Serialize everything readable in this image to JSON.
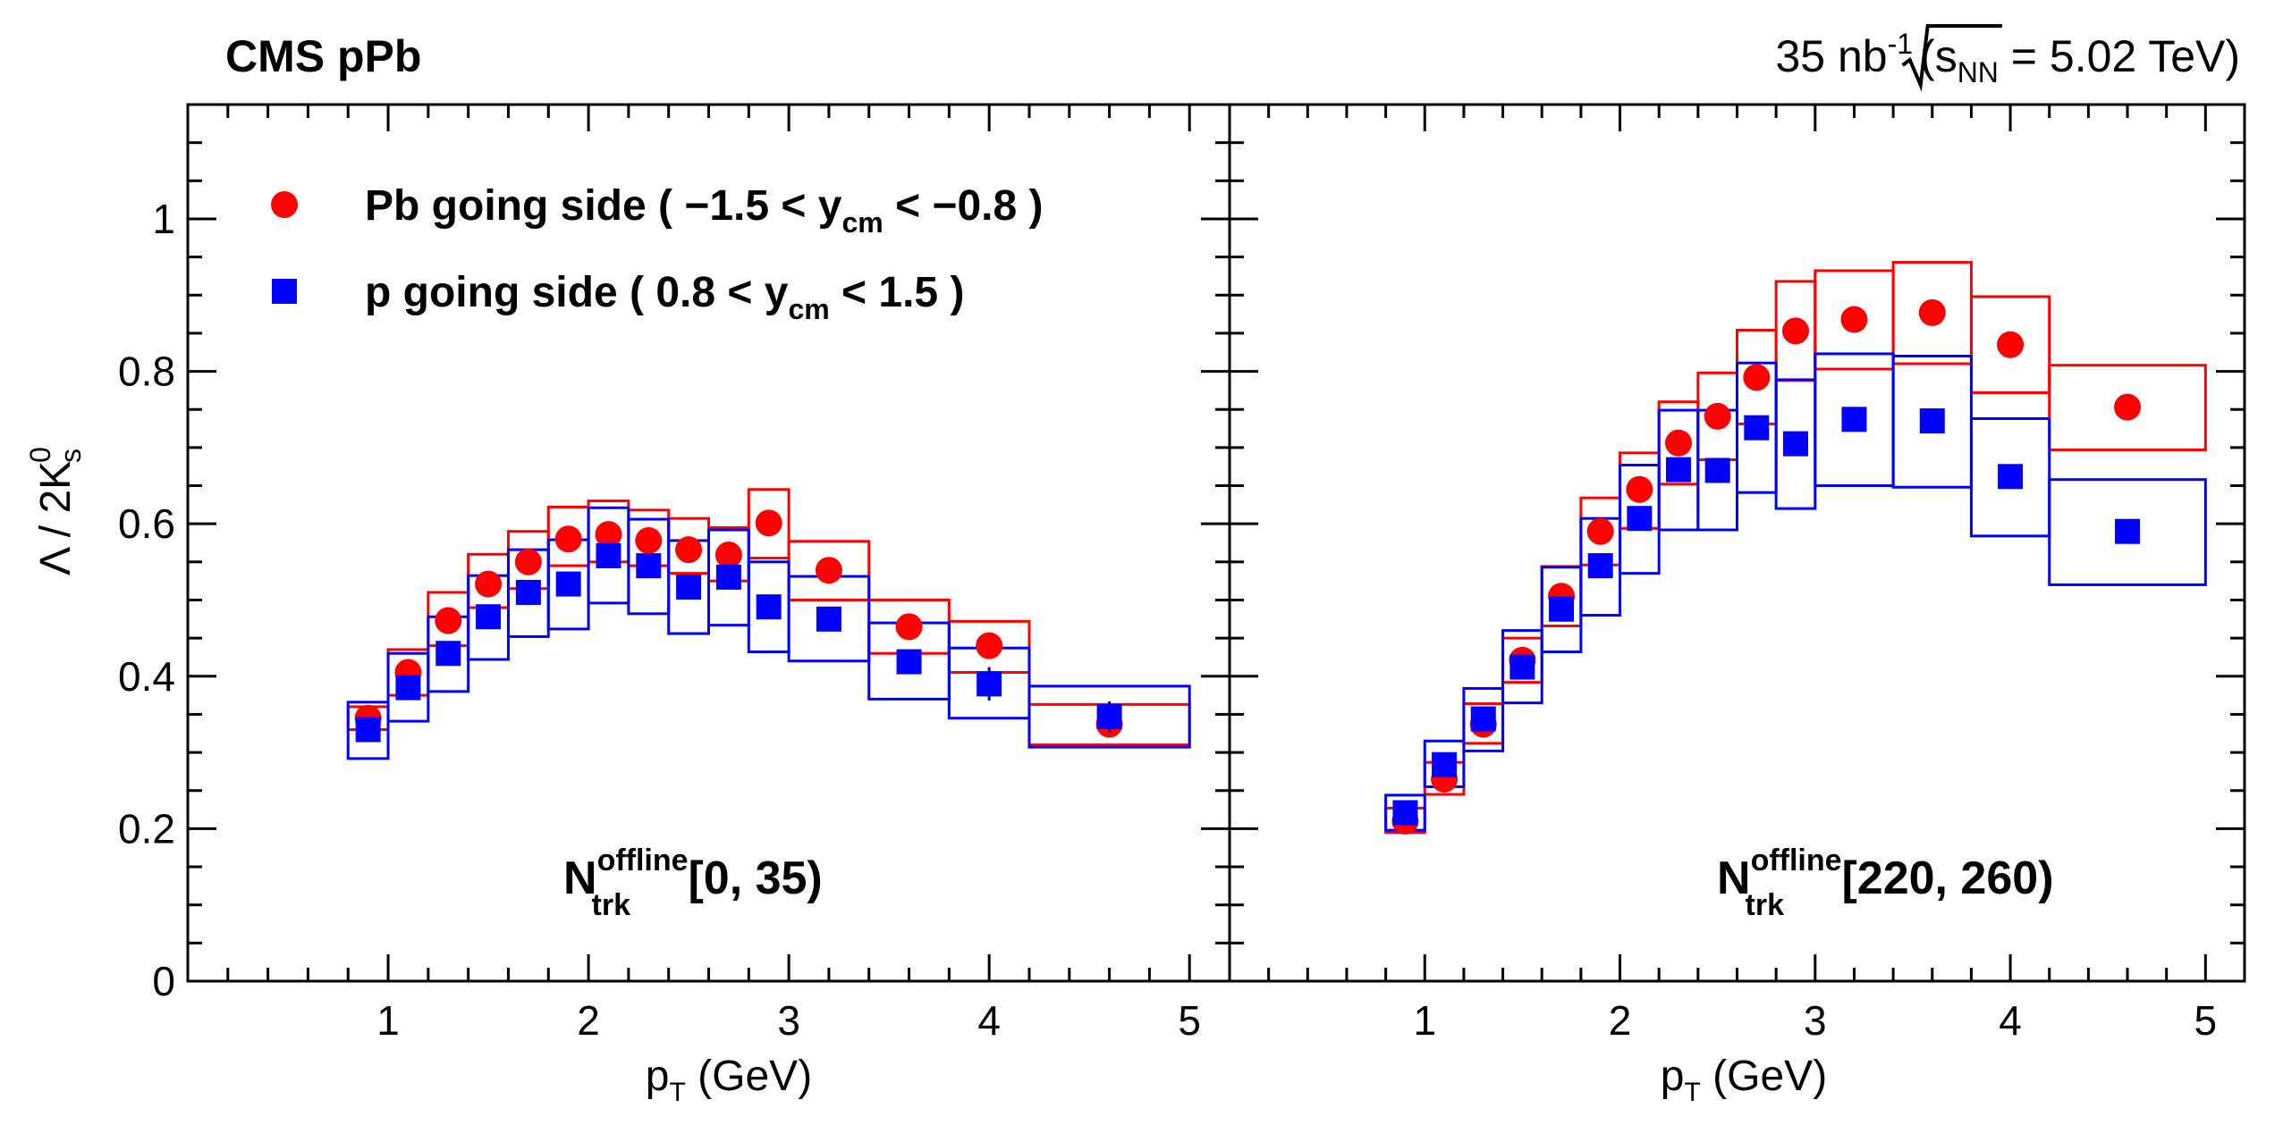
{
  "header": {
    "experiment": "CMS pPb",
    "lumi_value": "35 nb",
    "lumi_exp": "-1",
    "energy_open": "(",
    "energy_s": "s",
    "energy_sub": "NN",
    "energy_rest": " = 5.02 TeV)"
  },
  "colors": {
    "pb": "#ff0000",
    "p": "#0000ff",
    "axis": "#000000"
  },
  "legend": {
    "pb": {
      "pre": "Pb going side (  −1.5 < y",
      "sub": "cm",
      "post": " <  −0.8 )"
    },
    "p": {
      "pre": "p going side ( 0.8 < y",
      "sub": "cm",
      "post": " < 1.5 )"
    }
  },
  "chart_data": [
    {
      "type": "scatter",
      "title": "N_trk^offline [0, 35)",
      "xlabel": "p_T (GeV)",
      "ylabel": "Λ / 2K_s^0",
      "xlim": [
        0,
        5.2
      ],
      "ylim": [
        0,
        1.15
      ],
      "xticks": [
        1,
        2,
        3,
        4,
        5
      ],
      "yticks": [
        0,
        0.2,
        0.4,
        0.6,
        0.8,
        1
      ],
      "label": {
        "N": "N",
        "sup": "offline",
        "sub": "trk",
        "range": "[0, 35)"
      },
      "bin_edges": [
        0.8,
        1.0,
        1.2,
        1.4,
        1.6,
        1.8,
        2.0,
        2.2,
        2.4,
        2.6,
        2.8,
        3.0,
        3.4,
        3.8,
        4.2,
        5.0
      ],
      "series": [
        {
          "name": "Pb going side",
          "marker": "circle",
          "x": [
            0.9,
            1.1,
            1.3,
            1.5,
            1.7,
            1.9,
            2.1,
            2.3,
            2.5,
            2.7,
            2.9,
            3.2,
            3.6,
            4.0,
            4.6
          ],
          "y": [
            0.345,
            0.405,
            0.473,
            0.521,
            0.55,
            0.58,
            0.586,
            0.578,
            0.566,
            0.559,
            0.601,
            0.539,
            0.465,
            0.44,
            0.337
          ],
          "stat_err": [
            0.005,
            0.005,
            0.005,
            0.005,
            0.005,
            0.006,
            0.006,
            0.006,
            0.006,
            0.007,
            0.012,
            0.01,
            0.012,
            0.015,
            0.015
          ],
          "sys_low": [
            0.33,
            0.375,
            0.44,
            0.49,
            0.515,
            0.545,
            0.55,
            0.545,
            0.535,
            0.525,
            0.555,
            0.5,
            0.43,
            0.405,
            0.31
          ],
          "sys_high": [
            0.36,
            0.435,
            0.51,
            0.56,
            0.59,
            0.622,
            0.63,
            0.618,
            0.607,
            0.595,
            0.645,
            0.577,
            0.5,
            0.472,
            0.363
          ]
        },
        {
          "name": "p going side",
          "marker": "square",
          "x": [
            0.9,
            1.1,
            1.3,
            1.5,
            1.7,
            1.9,
            2.1,
            2.3,
            2.5,
            2.7,
            2.9,
            3.2,
            3.6,
            4.0,
            4.6
          ],
          "y": [
            0.33,
            0.385,
            0.43,
            0.478,
            0.51,
            0.521,
            0.558,
            0.545,
            0.517,
            0.53,
            0.491,
            0.475,
            0.419,
            0.39,
            0.347
          ],
          "stat_err": [
            0.005,
            0.005,
            0.005,
            0.005,
            0.005,
            0.006,
            0.006,
            0.006,
            0.006,
            0.007,
            0.015,
            0.01,
            0.015,
            0.022,
            0.02
          ],
          "sys_low": [
            0.292,
            0.341,
            0.38,
            0.422,
            0.452,
            0.462,
            0.496,
            0.482,
            0.456,
            0.467,
            0.432,
            0.42,
            0.37,
            0.345,
            0.307
          ],
          "sys_high": [
            0.366,
            0.43,
            0.478,
            0.532,
            0.566,
            0.579,
            0.621,
            0.606,
            0.578,
            0.592,
            0.55,
            0.531,
            0.47,
            0.437,
            0.387
          ]
        }
      ]
    },
    {
      "type": "scatter",
      "title": "N_trk^offline [220, 260)",
      "xlabel": "p_T (GeV)",
      "ylabel": "",
      "xlim": [
        0,
        5.2
      ],
      "ylim": [
        0,
        1.15
      ],
      "xticks": [
        1,
        2,
        3,
        4,
        5
      ],
      "yticks": [
        0,
        0.2,
        0.4,
        0.6,
        0.8,
        1
      ],
      "label": {
        "N": "N",
        "sup": "offline",
        "sub": "trk",
        "range": "[220, 260)"
      },
      "bin_edges": [
        0.8,
        1.0,
        1.2,
        1.4,
        1.6,
        1.8,
        2.0,
        2.2,
        2.4,
        2.6,
        2.8,
        3.0,
        3.4,
        3.8,
        4.2,
        5.0
      ],
      "series": [
        {
          "name": "Pb going side",
          "marker": "circle",
          "x": [
            0.9,
            1.1,
            1.3,
            1.5,
            1.7,
            1.9,
            2.1,
            2.3,
            2.5,
            2.7,
            2.9,
            3.2,
            3.6,
            4.0,
            4.6
          ],
          "y": [
            0.21,
            0.265,
            0.337,
            0.421,
            0.505,
            0.59,
            0.645,
            0.706,
            0.741,
            0.792,
            0.853,
            0.868,
            0.877,
            0.835,
            0.753
          ],
          "stat_err": [
            0.004,
            0.004,
            0.004,
            0.004,
            0.005,
            0.005,
            0.005,
            0.006,
            0.006,
            0.007,
            0.008,
            0.008,
            0.01,
            0.012,
            0.015
          ],
          "sys_low": [
            0.195,
            0.245,
            0.312,
            0.392,
            0.466,
            0.546,
            0.594,
            0.652,
            0.684,
            0.731,
            0.788,
            0.803,
            0.81,
            0.772,
            0.697
          ],
          "sys_high": [
            0.227,
            0.287,
            0.364,
            0.45,
            0.544,
            0.634,
            0.693,
            0.76,
            0.798,
            0.854,
            0.918,
            0.932,
            0.943,
            0.898,
            0.808
          ]
        },
        {
          "name": "p going side",
          "marker": "square",
          "x": [
            0.9,
            1.1,
            1.3,
            1.5,
            1.7,
            1.9,
            2.1,
            2.3,
            2.5,
            2.7,
            2.9,
            3.2,
            3.6,
            4.0,
            4.6
          ],
          "y": [
            0.221,
            0.284,
            0.344,
            0.412,
            0.488,
            0.545,
            0.607,
            0.671,
            0.67,
            0.726,
            0.705,
            0.737,
            0.735,
            0.662,
            0.59
          ],
          "stat_err": [
            0.004,
            0.004,
            0.004,
            0.004,
            0.005,
            0.005,
            0.005,
            0.006,
            0.006,
            0.007,
            0.008,
            0.008,
            0.01,
            0.012,
            0.015
          ],
          "sys_low": [
            0.198,
            0.255,
            0.302,
            0.365,
            0.432,
            0.48,
            0.535,
            0.592,
            0.592,
            0.641,
            0.62,
            0.65,
            0.648,
            0.584,
            0.52
          ],
          "sys_high": [
            0.244,
            0.315,
            0.384,
            0.46,
            0.543,
            0.607,
            0.677,
            0.749,
            0.749,
            0.811,
            0.789,
            0.823,
            0.82,
            0.738,
            0.658
          ]
        }
      ]
    }
  ]
}
